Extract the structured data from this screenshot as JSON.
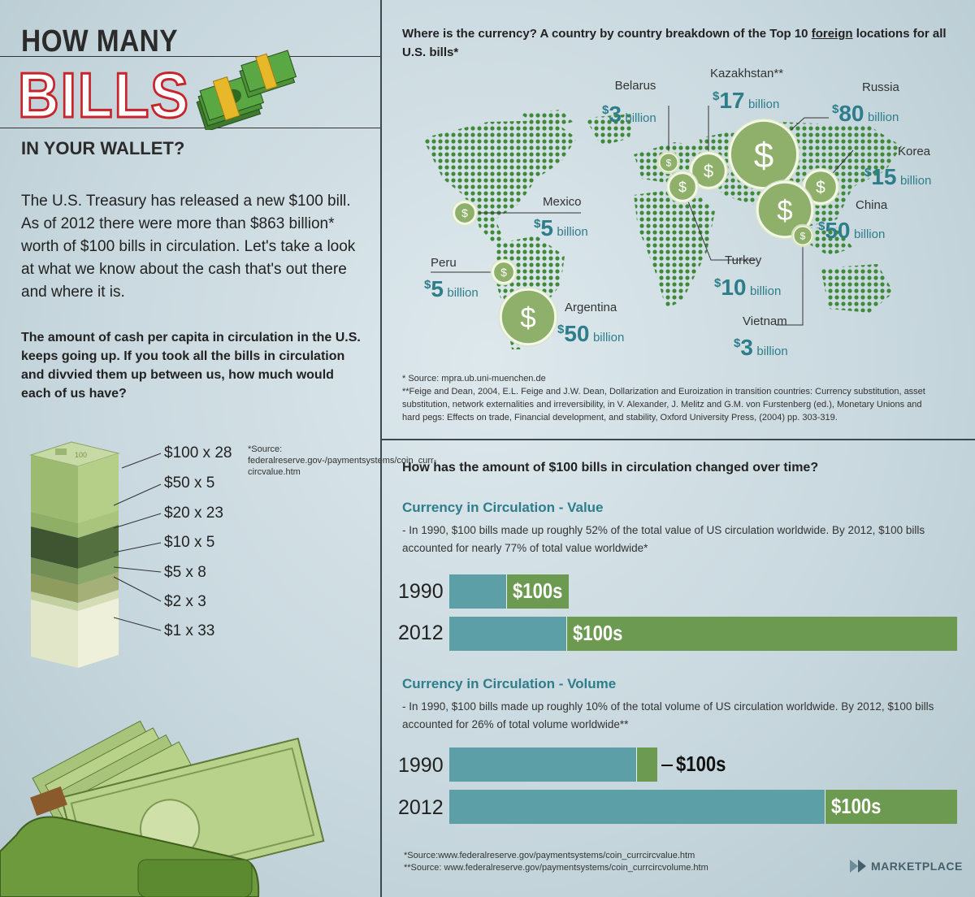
{
  "title": {
    "line1": "HOW MANY",
    "line2": "BILLS",
    "line3": "IN YOUR WALLET?"
  },
  "intro": "The U.S. Treasury has released a new $100 bill. As of 2012 there were more than $863 billion* worth of $100 bills in circulation. Let's take a look at what we know about the cash that's out there and where it is.",
  "per_capita": {
    "question": "The amount of cash per capita in circulation in the U.S. keeps going up.  If you took all the bills in circulation and divvied them up between us, how much would each of us have?",
    "source": "*Source: federalreserve.gov-/paymentsystems/coin_curr-circvalue.htm",
    "stack_label": "100",
    "items": [
      {
        "label": "$100 x 28"
      },
      {
        "label": "$50 x 5"
      },
      {
        "label": "$20 x 23"
      },
      {
        "label": "$10 x 5"
      },
      {
        "label": "$5 x 8"
      },
      {
        "label": "$2 x 3"
      },
      {
        "label": "$1 x 33"
      }
    ]
  },
  "map": {
    "title_part1": "Where is the currency? A country by country breakdown of the Top 10 ",
    "title_underlined": "foreign",
    "title_part2": " locations for all U.S. bills*",
    "unit": "billion",
    "currency_symbol": "$",
    "countries": [
      {
        "name": "Belarus",
        "value": "3"
      },
      {
        "name": "Kazakhstan**",
        "value": "17"
      },
      {
        "name": "Russia",
        "value": "80"
      },
      {
        "name": "Korea",
        "value": "15"
      },
      {
        "name": "China",
        "value": "50"
      },
      {
        "name": "Mexico",
        "value": "5"
      },
      {
        "name": "Turkey",
        "value": "10"
      },
      {
        "name": "Peru",
        "value": "5"
      },
      {
        "name": "Argentina",
        "value": "50"
      },
      {
        "name": "Vietnam",
        "value": "3"
      }
    ],
    "note1": "* Source: mpra.ub.uni-muenchen.de",
    "note2": "**Feige and Dean, 2004, E.L. Feige and J.W. Dean, Dollarization and Euroization in transition countries: Currency substitution, asset substitution, network externalities and irreversibility, in V. Alexander, J. Melitz and G.M. von Furstenberg (ed.), Monetary Unions and hard pegs: Effects on trade, Financial development, and stability, Oxford University Press, (2004) pp. 303-319."
  },
  "circulation": {
    "question": "How has the amount of $100 bills in circulation changed over time?",
    "value_title": "Currency in Circulation - Value",
    "value_text": "- In 1990, $100 bills made up roughly 52% of the total value of US circulation worldwide.  By 2012, $100 bills accounted for nearly 77% of total value worldwide*",
    "volume_title": "Currency in Circulation - Volume",
    "volume_text": "- In 1990, $100 bills made up roughly 10% of the total volume of US circulation worldwide.  By 2012, $100 bills accounted for 26% of total volume worldwide**",
    "bar_label": "$100s",
    "foot1": "*Source:www.federalreserve.gov/paymentsystems/coin_currcircvalue.htm",
    "foot2": "**Source: www.federalreserve.gov/paymentsystems/coin_currcircvolume.htm",
    "brand": "MARKETPLACE"
  },
  "colors": {
    "teal": "#5d9fa6",
    "green": "#6c9a50",
    "accent_text": "#2e7d8a",
    "title_red": "#c8242b"
  },
  "chart_data": [
    {
      "type": "map",
      "title": "Where is the currency? A country by country breakdown of the Top 10 foreign locations for all U.S. bills*",
      "unit": "billion",
      "categories": [
        "Belarus",
        "Kazakhstan**",
        "Russia",
        "Korea",
        "China",
        "Mexico",
        "Turkey",
        "Peru",
        "Argentina",
        "Vietnam"
      ],
      "values": [
        3,
        17,
        80,
        15,
        50,
        5,
        10,
        5,
        50,
        3
      ]
    },
    {
      "type": "bar",
      "title": "Currency in Circulation - Value",
      "categories": [
        "1990",
        "2012"
      ],
      "series": [
        {
          "name": "$100s",
          "values": [
            52,
            77
          ]
        }
      ],
      "totals": [
        100,
        100
      ]
    },
    {
      "type": "bar",
      "title": "Currency in Circulation - Volume",
      "categories": [
        "1990",
        "2012"
      ],
      "series": [
        {
          "name": "$100s",
          "values": [
            10,
            26
          ]
        }
      ],
      "totals": [
        100,
        100
      ]
    }
  ]
}
